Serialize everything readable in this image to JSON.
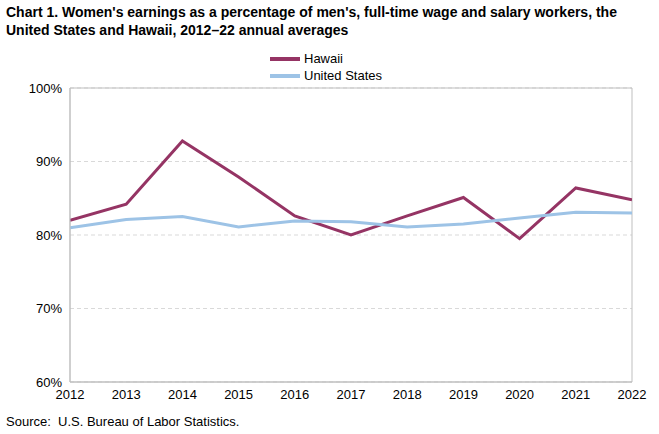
{
  "chart_data": {
    "type": "line",
    "title": "Chart 1. Women's earnings as a percentage of men's, full-time wage and salary workers, the United States and Hawaii, 2012–22 annual averages",
    "source": "Source:  U.S. Bureau of Labor Statistics.",
    "x": [
      2012,
      2013,
      2014,
      2015,
      2016,
      2017,
      2018,
      2019,
      2020,
      2021,
      2022
    ],
    "series": [
      {
        "name": "Hawaii",
        "color": "#953464",
        "values": [
          82.0,
          84.2,
          92.8,
          87.9,
          82.6,
          80.0,
          82.6,
          85.1,
          79.5,
          86.4,
          84.8
        ]
      },
      {
        "name": "United States",
        "color": "#9dc3e6",
        "values": [
          81.0,
          82.1,
          82.5,
          81.1,
          81.9,
          81.8,
          81.1,
          81.5,
          82.3,
          83.1,
          83.0
        ]
      }
    ],
    "xlim": [
      2012,
      2022
    ],
    "xticks": [
      2012,
      2013,
      2014,
      2015,
      2016,
      2017,
      2018,
      2019,
      2020,
      2021,
      2022
    ],
    "ylim": [
      60,
      100
    ],
    "yticks": [
      {
        "value": 60,
        "label": "60%"
      },
      {
        "value": 70,
        "label": "70%"
      },
      {
        "value": 80,
        "label": "80%"
      },
      {
        "value": 90,
        "label": "90%"
      },
      {
        "value": 100,
        "label": "100%"
      }
    ],
    "grid": true,
    "legend": "top"
  }
}
